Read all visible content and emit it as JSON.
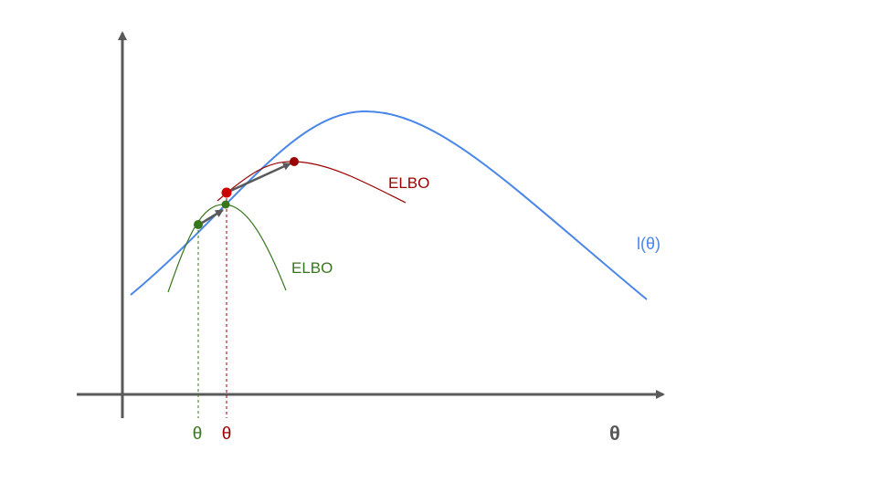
{
  "labels": {
    "l_theta": "l(θ)",
    "elbo_red": "ELBO",
    "elbo_green": "ELBO",
    "theta_green": "θ",
    "theta_red": "θ",
    "theta_axis": "θ"
  },
  "colors": {
    "likelihood": "#4a86e8",
    "elbo_red": "#990000",
    "elbo_green": "#38761d",
    "axis": "#595959",
    "arrow": "#595959"
  }
}
